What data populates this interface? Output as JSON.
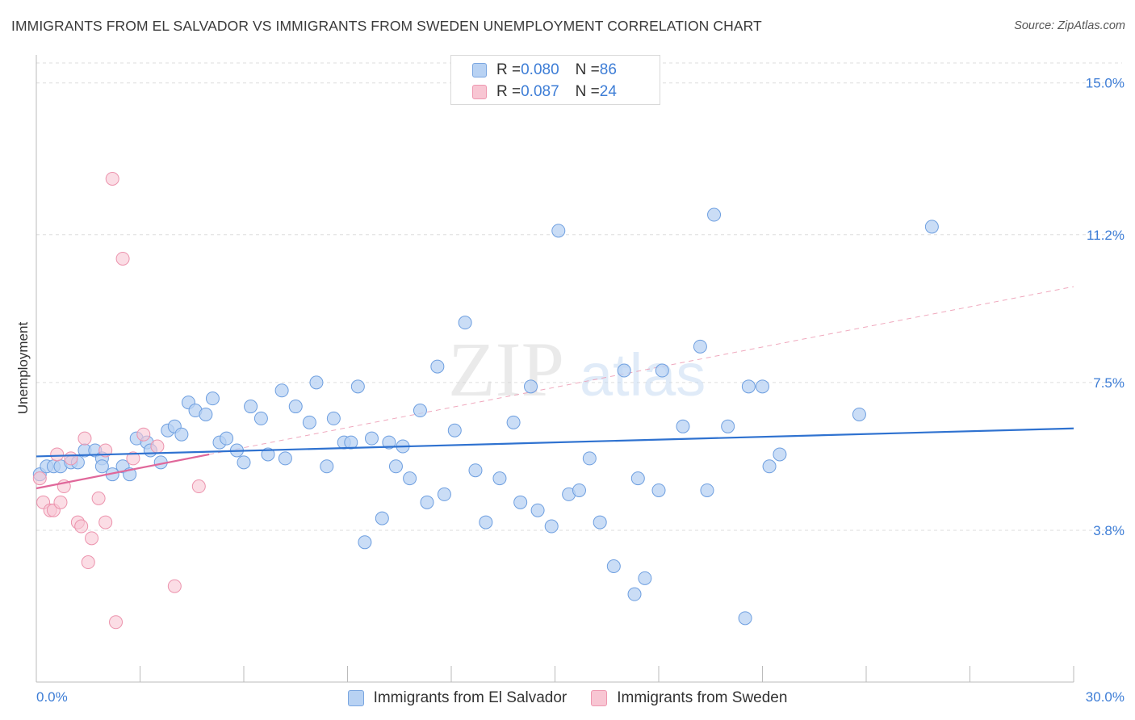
{
  "title": "IMMIGRANTS FROM EL SALVADOR VS IMMIGRANTS FROM SWEDEN UNEMPLOYMENT CORRELATION CHART",
  "source": "Source: ZipAtlas.com",
  "watermark": {
    "zip": "ZIP",
    "atlas": "atlas"
  },
  "legend_top": [
    {
      "r_label": "R = ",
      "r_value": "0.080",
      "n_label": "N = ",
      "n_value": "86"
    },
    {
      "r_label": "R = ",
      "r_value": "0.087",
      "n_label": "N = ",
      "n_value": "24"
    }
  ],
  "colors": {
    "blue_fill": "#b8d2f3",
    "blue_stroke": "#6e9fe0",
    "blue_line": "#2f72d0",
    "pink_fill": "#f8c6d3",
    "pink_stroke": "#ec93ad",
    "pink_line": "#e0679a",
    "tick_text": "#3d7dd6",
    "grid": "#dddddd"
  },
  "chart_data": {
    "type": "scatter",
    "ylabel": "Unemployment",
    "xlabel": "",
    "xlim": [
      0,
      30
    ],
    "ylim": [
      0,
      15.5
    ],
    "x_tick_labels": [
      "0.0%",
      "30.0%"
    ],
    "y_ticks": [
      {
        "value": 3.8,
        "label": "3.8%"
      },
      {
        "value": 7.5,
        "label": "7.5%"
      },
      {
        "value": 11.2,
        "label": "11.2%"
      },
      {
        "value": 15.0,
        "label": "15.0%"
      }
    ],
    "grid": "horizontal dashed",
    "legend_position": "bottom-center",
    "series": [
      {
        "name": "Immigrants from El Salvador",
        "color": "#b8d2f3",
        "trend": {
          "x": [
            0,
            30
          ],
          "y": [
            5.65,
            6.35
          ]
        },
        "points": [
          [
            0.1,
            5.2
          ],
          [
            0.3,
            5.4
          ],
          [
            0.5,
            5.4
          ],
          [
            0.7,
            5.4
          ],
          [
            1.0,
            5.5
          ],
          [
            1.2,
            5.5
          ],
          [
            1.4,
            5.8
          ],
          [
            1.7,
            5.8
          ],
          [
            1.9,
            5.6
          ],
          [
            1.9,
            5.4
          ],
          [
            2.2,
            5.2
          ],
          [
            2.5,
            5.4
          ],
          [
            2.7,
            5.2
          ],
          [
            2.9,
            6.1
          ],
          [
            3.2,
            6.0
          ],
          [
            3.3,
            5.8
          ],
          [
            3.6,
            5.5
          ],
          [
            3.8,
            6.3
          ],
          [
            4.0,
            6.4
          ],
          [
            4.2,
            6.2
          ],
          [
            4.4,
            7.0
          ],
          [
            4.6,
            6.8
          ],
          [
            4.9,
            6.7
          ],
          [
            5.1,
            7.1
          ],
          [
            5.3,
            6.0
          ],
          [
            5.5,
            6.1
          ],
          [
            5.8,
            5.8
          ],
          [
            6.0,
            5.5
          ],
          [
            6.2,
            6.9
          ],
          [
            6.5,
            6.6
          ],
          [
            6.7,
            5.7
          ],
          [
            7.1,
            7.3
          ],
          [
            7.2,
            5.6
          ],
          [
            7.5,
            6.9
          ],
          [
            7.9,
            6.5
          ],
          [
            8.1,
            7.5
          ],
          [
            8.4,
            5.4
          ],
          [
            8.6,
            6.6
          ],
          [
            8.9,
            6.0
          ],
          [
            9.1,
            6.0
          ],
          [
            9.3,
            7.4
          ],
          [
            9.5,
            3.5
          ],
          [
            9.7,
            6.1
          ],
          [
            10.0,
            4.1
          ],
          [
            10.2,
            6.0
          ],
          [
            10.4,
            5.4
          ],
          [
            10.6,
            5.9
          ],
          [
            10.8,
            5.1
          ],
          [
            11.1,
            6.8
          ],
          [
            11.3,
            4.5
          ],
          [
            11.6,
            7.9
          ],
          [
            11.8,
            4.7
          ],
          [
            12.1,
            6.3
          ],
          [
            12.4,
            9.0
          ],
          [
            12.7,
            5.3
          ],
          [
            13.0,
            4.0
          ],
          [
            13.4,
            5.1
          ],
          [
            13.8,
            6.5
          ],
          [
            14.0,
            4.5
          ],
          [
            14.3,
            7.4
          ],
          [
            14.5,
            4.3
          ],
          [
            14.9,
            3.9
          ],
          [
            15.1,
            11.3
          ],
          [
            15.4,
            4.7
          ],
          [
            15.7,
            4.8
          ],
          [
            16.0,
            5.6
          ],
          [
            16.3,
            4.0
          ],
          [
            16.7,
            2.9
          ],
          [
            17.0,
            7.8
          ],
          [
            17.3,
            2.2
          ],
          [
            17.4,
            5.1
          ],
          [
            17.6,
            2.6
          ],
          [
            18.0,
            4.8
          ],
          [
            18.1,
            7.8
          ],
          [
            18.7,
            6.4
          ],
          [
            19.2,
            8.4
          ],
          [
            19.4,
            4.8
          ],
          [
            19.6,
            11.7
          ],
          [
            20.0,
            6.4
          ],
          [
            20.5,
            1.6
          ],
          [
            20.6,
            7.4
          ],
          [
            21.2,
            5.4
          ],
          [
            21.5,
            5.7
          ],
          [
            23.8,
            6.7
          ],
          [
            25.9,
            11.4
          ],
          [
            21.0,
            7.4
          ]
        ]
      },
      {
        "name": "Immigrants from Sweden",
        "color": "#f8c6d3",
        "trend": {
          "x": [
            0,
            5
          ],
          "y": [
            4.85,
            5.7
          ]
        },
        "trend_extended": {
          "x": [
            5,
            30
          ],
          "y": [
            5.7,
            9.9
          ]
        },
        "points": [
          [
            0.1,
            5.1
          ],
          [
            0.2,
            4.5
          ],
          [
            0.4,
            4.3
          ],
          [
            0.5,
            4.3
          ],
          [
            0.6,
            5.7
          ],
          [
            0.7,
            4.5
          ],
          [
            0.8,
            4.9
          ],
          [
            1.0,
            5.6
          ],
          [
            1.2,
            4.0
          ],
          [
            1.3,
            3.9
          ],
          [
            1.4,
            6.1
          ],
          [
            1.5,
            3.0
          ],
          [
            1.6,
            3.6
          ],
          [
            1.8,
            4.6
          ],
          [
            2.0,
            5.8
          ],
          [
            2.0,
            4.0
          ],
          [
            2.2,
            12.6
          ],
          [
            2.3,
            1.5
          ],
          [
            2.5,
            10.6
          ],
          [
            2.8,
            5.6
          ],
          [
            3.1,
            6.2
          ],
          [
            3.5,
            5.9
          ],
          [
            4.0,
            2.4
          ],
          [
            4.7,
            4.9
          ]
        ]
      }
    ]
  }
}
